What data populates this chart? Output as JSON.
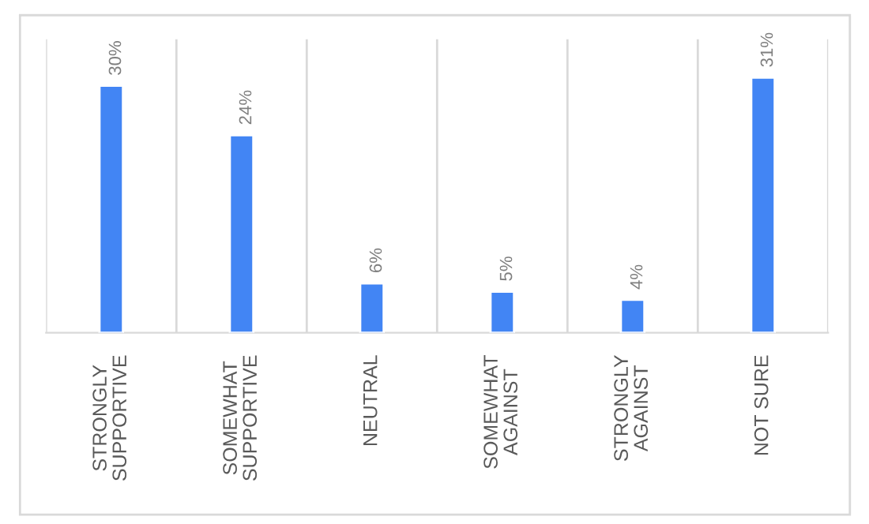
{
  "chart_data": {
    "type": "bar",
    "categories": [
      "STRONGLY\nSUPPORTIVE",
      "SOMEWHAT\nSUPPORTIVE",
      "NEUTRAL",
      "SOMEWHAT\nAGAINST",
      "STRONGLY\nAGAINST",
      "NOT SURE"
    ],
    "values": [
      30,
      24,
      6,
      5,
      4,
      31
    ],
    "value_labels": [
      "30%",
      "24%",
      "6%",
      "5%",
      "4%",
      "31%"
    ],
    "color": "#4285f4",
    "grid": "x"
  }
}
